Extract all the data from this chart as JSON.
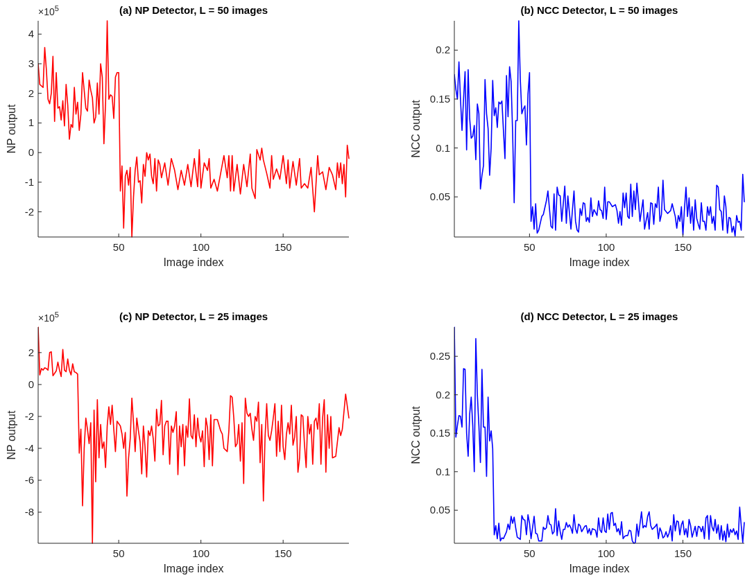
{
  "chart_data": [
    {
      "type": "line",
      "title": "(a) NP Detector, L = 50 images",
      "xlabel": "Image index",
      "ylabel": "NP output",
      "annotations": [
        "×10$^{5}$"
      ],
      "xlim": [
        1,
        190
      ],
      "xticks": [
        50,
        100,
        150
      ],
      "ylim": [
        -2.85,
        4.45
      ],
      "yticks": [
        -2,
        -1,
        0,
        1,
        2,
        3,
        4
      ],
      "x": [
        1,
        2,
        3,
        4,
        5,
        6,
        7,
        8,
        9,
        10,
        11,
        12,
        13,
        14,
        15,
        16,
        17,
        18,
        19,
        20,
        21,
        22,
        23,
        24,
        25,
        26,
        27,
        28,
        29,
        30,
        31,
        32,
        33,
        34,
        35,
        36,
        37,
        38,
        39,
        40,
        41,
        42,
        43,
        44,
        45,
        46,
        47,
        48,
        49,
        50,
        51,
        52,
        53,
        54,
        55,
        56,
        57,
        58,
        59,
        60,
        61,
        62,
        63,
        64,
        65,
        66,
        67,
        68,
        69,
        70,
        71,
        72,
        73,
        74,
        75,
        76,
        78,
        80,
        82,
        84,
        86,
        88,
        90,
        92,
        94,
        96,
        98,
        99,
        100,
        102,
        104,
        105,
        106,
        108,
        110,
        112,
        114,
        116,
        117,
        118,
        119,
        120,
        122,
        124,
        126,
        128,
        130,
        131,
        133,
        134,
        136,
        137,
        138,
        140,
        142,
        143,
        144,
        146,
        148,
        150,
        152,
        153,
        154,
        156,
        158,
        160,
        161,
        163,
        165,
        167,
        169,
        171,
        172,
        174,
        176,
        178,
        180,
        182,
        183,
        184,
        185,
        186,
        187,
        188,
        189,
        190
      ],
      "series": [
        {
          "color": "#ff0000",
          "values": [
            3.0,
            2.3,
            2.25,
            2.2,
            3.55,
            2.8,
            1.8,
            1.65,
            2.0,
            3.25,
            1.05,
            2.7,
            1.5,
            1.55,
            1.1,
            1.75,
            0.9,
            2.3,
            1.6,
            0.45,
            0.95,
            0.85,
            2.2,
            1.3,
            1.7,
            0.75,
            1.3,
            2.7,
            2.1,
            1.5,
            1.4,
            2.45,
            2.1,
            1.85,
            1.0,
            1.2,
            2.35,
            1.3,
            3.0,
            2.55,
            0.3,
            1.65,
            4.45,
            1.8,
            1.95,
            1.9,
            1.15,
            2.55,
            2.7,
            2.7,
            -1.3,
            -0.45,
            -2.55,
            -0.8,
            -0.6,
            -1.1,
            -0.5,
            -2.85,
            -1.5,
            -0.6,
            -0.15,
            -1.0,
            -0.95,
            -1.7,
            -0.4,
            -0.8,
            0,
            -0.25,
            -0.05,
            -0.8,
            -1.05,
            -0.2,
            -1.3,
            -0.25,
            -0.4,
            -0.85,
            -0.35,
            -1.1,
            -0.2,
            -0.6,
            -1.25,
            -0.6,
            -1.1,
            -0.4,
            -1.15,
            -0.2,
            -1.15,
            0.1,
            -1.2,
            -0.35,
            -0.6,
            -0.2,
            -1.2,
            -0.9,
            -1.3,
            -0.7,
            -0.1,
            -0.85,
            -0.1,
            -1.3,
            -0.1,
            -1.3,
            -0.4,
            -1.4,
            -0.4,
            -1.15,
            -0.05,
            -1.2,
            -1.55,
            0.1,
            -0.25,
            0.15,
            -0.25,
            -0.7,
            -1.2,
            -0.1,
            -0.9,
            -0.55,
            -0.9,
            -0.1,
            -1.05,
            -0.25,
            -1.2,
            -0.3,
            -1.1,
            -0.2,
            -1.2,
            -1.05,
            -1.2,
            -0.5,
            -2.0,
            -0.1,
            -0.75,
            -0.65,
            -1.25,
            -0.5,
            -0.75,
            -1.25,
            -0.35,
            -0.85,
            -0.35,
            -1.05,
            -0.4,
            -1.5,
            0.25,
            -0.2
          ]
        }
      ]
    },
    {
      "type": "line",
      "title": "(b) NCC Detector, L = 50 images",
      "xlabel": "Image index",
      "ylabel": "NCC output",
      "xlim": [
        1,
        190
      ],
      "xticks": [
        50,
        100,
        150
      ],
      "ylim": [
        0.009,
        0.23
      ],
      "yticks": [
        0.05,
        0.1,
        0.15,
        0.2
      ],
      "x": [
        1,
        2,
        3,
        4,
        5,
        6,
        7,
        8,
        9,
        10,
        11,
        12,
        13,
        14,
        15,
        16,
        17,
        18,
        19,
        20,
        21,
        22,
        23,
        24,
        25,
        26,
        27,
        28,
        29,
        30,
        31,
        32,
        33,
        34,
        35,
        36,
        37,
        38,
        39,
        40,
        41,
        42,
        43,
        44,
        45,
        46,
        47,
        48,
        49,
        50,
        51,
        52,
        53,
        54,
        55,
        56,
        58,
        59,
        61,
        62,
        63,
        64,
        65,
        66,
        67,
        68,
        69,
        70,
        71,
        73,
        74,
        75,
        77,
        78,
        79,
        80,
        81,
        82,
        83,
        84,
        85,
        86,
        87,
        88,
        89,
        90,
        91,
        92,
        94,
        95,
        96,
        97,
        98,
        99,
        100,
        101,
        102,
        104,
        106,
        107,
        108,
        109,
        110,
        111,
        112,
        113,
        114,
        115,
        116,
        117,
        118,
        119,
        120,
        121,
        122,
        124,
        125,
        127,
        128,
        129,
        130,
        131,
        132,
        133,
        134,
        135,
        136,
        137,
        138,
        140,
        142,
        143,
        145,
        146,
        147,
        148,
        149,
        150,
        151,
        152,
        153,
        154,
        155,
        156,
        157,
        158,
        159,
        160,
        161,
        162,
        163,
        164,
        165,
        166,
        167,
        168,
        169,
        170,
        171,
        172,
        173,
        174,
        175,
        176,
        177,
        178,
        179,
        180,
        181,
        182,
        183,
        184,
        185,
        186,
        187,
        188,
        189,
        190
      ],
      "series": [
        {
          "color": "#0000ff",
          "values": [
            0.175,
            0.16,
            0.15,
            0.188,
            0.15,
            0.118,
            0.15,
            0.178,
            0.098,
            0.18,
            0.13,
            0.11,
            0.112,
            0.123,
            0.088,
            0.145,
            0.135,
            0.058,
            0.072,
            0.082,
            0.17,
            0.135,
            0.12,
            0.072,
            0.1,
            0.169,
            0.133,
            0.141,
            0.121,
            0.147,
            0.145,
            0.148,
            0.118,
            0.089,
            0.174,
            0.132,
            0.183,
            0.168,
            0.115,
            0.044,
            0.128,
            0.128,
            0.23,
            0.17,
            0.135,
            0.14,
            0.143,
            0.103,
            0.155,
            0.177,
            0.025,
            0.04,
            0.017,
            0.043,
            0.013,
            0.016,
            0.03,
            0.032,
            0.046,
            0.056,
            0.038,
            0.02,
            0.018,
            0.053,
            0.016,
            0.06,
            0.052,
            0.051,
            0.025,
            0.061,
            0.023,
            0.051,
            0.017,
            0.037,
            0.056,
            0.025,
            0.016,
            0.014,
            0.038,
            0.031,
            0.044,
            0.043,
            0.025,
            0.029,
            0.024,
            0.049,
            0.03,
            0.037,
            0.031,
            0.046,
            0.037,
            0.036,
            0.028,
            0.06,
            0.027,
            0.045,
            0.045,
            0.04,
            0.042,
            0.036,
            0.023,
            0.035,
            0.021,
            0.054,
            0.039,
            0.054,
            0.03,
            0.028,
            0.063,
            0.03,
            0.056,
            0.037,
            0.064,
            0.045,
            0.025,
            0.047,
            0.017,
            0.034,
            0.017,
            0.044,
            0.043,
            0.022,
            0.043,
            0.039,
            0.06,
            0.025,
            0.032,
            0.067,
            0.037,
            0.033,
            0.036,
            0.043,
            0.03,
            0.018,
            0.031,
            0.025,
            0.04,
            0.011,
            0.038,
            0.06,
            0.03,
            0.049,
            0.023,
            0.04,
            0.016,
            0.047,
            0.028,
            0.022,
            0.017,
            0.044,
            0.025,
            0.025,
            0.016,
            0.04,
            0.031,
            0.04,
            0.023,
            0.03,
            0.016,
            0.062,
            0.06,
            0.037,
            0.035,
            0.016,
            0.051,
            0.04,
            0.013,
            0.029,
            0.028,
            0.014,
            0.02,
            0.01,
            0.031,
            0.024,
            0.025,
            0.016,
            0.073,
            0.045
          ]
        }
      ]
    },
    {
      "type": "line",
      "title": "(c) NP Detector, L = 25 images",
      "xlabel": "Image index",
      "ylabel": "NP output",
      "annotations": [
        "×10$^{5}$"
      ],
      "xlim": [
        1,
        190
      ],
      "xticks": [
        50,
        100,
        150
      ],
      "ylim": [
        -9.95,
        3.6
      ],
      "yticks": [
        -8,
        -6,
        -4,
        -2,
        0,
        2
      ],
      "x": [
        1,
        2,
        3,
        4,
        5,
        6,
        7,
        8,
        9,
        10,
        11,
        12,
        13,
        14,
        15,
        16,
        17,
        18,
        19,
        20,
        21,
        22,
        23,
        24,
        25,
        26,
        27,
        28,
        29,
        30,
        31,
        32,
        33,
        34,
        35,
        36,
        37,
        38,
        39,
        40,
        41,
        42,
        43,
        44,
        45,
        46,
        47,
        48,
        49,
        51,
        52,
        53,
        54,
        55,
        56,
        57,
        58,
        59,
        60,
        61,
        62,
        63,
        64,
        65,
        66,
        67,
        68,
        69,
        70,
        71,
        72,
        73,
        74,
        75,
        76,
        77,
        78,
        79,
        80,
        81,
        82,
        83,
        84,
        85,
        86,
        87,
        88,
        89,
        90,
        91,
        92,
        93,
        94,
        95,
        96,
        97,
        98,
        99,
        100,
        101,
        102,
        103,
        104,
        105,
        106,
        107,
        108,
        110,
        112,
        113,
        114,
        116,
        117,
        118,
        119,
        120,
        121,
        122,
        123,
        124,
        125,
        126,
        127,
        128,
        129,
        130,
        131,
        132,
        133,
        134,
        135,
        136,
        137,
        138,
        139,
        140,
        141,
        142,
        143,
        144,
        145,
        146,
        147,
        148,
        149,
        150,
        151,
        152,
        153,
        154,
        155,
        156,
        157,
        158,
        159,
        160,
        161,
        162,
        163,
        164,
        165,
        166,
        167,
        168,
        169,
        170,
        171,
        172,
        173,
        174,
        175,
        176,
        177,
        178,
        179,
        180,
        182,
        184,
        185,
        186,
        188,
        190
      ],
      "series": [
        {
          "color": "#ff0000",
          "values": [
            3.6,
            0.6,
            1.0,
            0.9,
            1.05,
            1.0,
            0.9,
            2.0,
            2.05,
            0.55,
            0.7,
            0.85,
            1.4,
            0.9,
            0.5,
            2.2,
            0.9,
            0.8,
            1.6,
            0.9,
            0.6,
            1.3,
            0.8,
            0.75,
            0.65,
            -4.3,
            -2.8,
            -7.6,
            -4.0,
            -2.1,
            -2.8,
            -3.7,
            -2.4,
            -9.95,
            -1.6,
            -6.1,
            -0.95,
            -4.6,
            -2.5,
            -4.0,
            -3.6,
            -5.2,
            -2.6,
            -1.4,
            -2.5,
            -1.3,
            -2.8,
            -4.2,
            -2.3,
            -2.6,
            -3.1,
            -4.0,
            -3.0,
            -7.0,
            -4.6,
            -3.4,
            -0.85,
            -2.4,
            -4.2,
            -2.1,
            -2.9,
            -3.6,
            -5.6,
            -2.6,
            -3.9,
            -5.8,
            -2.9,
            -3.2,
            -2.6,
            -3.4,
            -4.8,
            -1.55,
            -2.6,
            -2.5,
            -1.0,
            -4.4,
            -2.6,
            -2.3,
            -2.3,
            -5.0,
            -2.6,
            -3.0,
            -2.6,
            -1.7,
            -5.65,
            -2.6,
            -3.9,
            -2.5,
            -5.1,
            -2.6,
            -3.3,
            -0.9,
            -3.2,
            -3.4,
            -1.9,
            -3.9,
            -2.1,
            -3.2,
            -3.6,
            -2.9,
            -5.15,
            -2.1,
            -2.7,
            -4.7,
            -1.9,
            -5.1,
            -2.2,
            -2.2,
            -2.9,
            -3.1,
            -4.0,
            -4.2,
            -2.9,
            -0.7,
            -0.8,
            -2.1,
            -3.9,
            -3.7,
            -2.5,
            -4.8,
            -2.4,
            -6.2,
            -0.85,
            -1.8,
            -2.0,
            -1.8,
            -2.8,
            -3.5,
            -2.0,
            -2.3,
            -1.1,
            -4.9,
            -2.5,
            -7.3,
            -3.3,
            -1.2,
            -3.2,
            -3.5,
            -2.9,
            -2.1,
            -1.2,
            -4.5,
            -2.3,
            -4.2,
            -1.3,
            -3.9,
            -4.7,
            -3.1,
            -2.4,
            -3.1,
            -1.3,
            -3.8,
            -3.3,
            -2.0,
            -5.5,
            -4.6,
            -1.9,
            -2.0,
            -3.8,
            -5.2,
            -2.0,
            -3.1,
            -2.5,
            -5.0,
            -2.3,
            -2.1,
            -2.8,
            -1.2,
            -5.0,
            -2.1,
            -0.95,
            -5.5,
            -1.9,
            -4.0,
            -2.0,
            -4.6,
            -4.5,
            -2.7,
            -3.2,
            -2.8,
            -0.6,
            -2.1
          ]
        }
      ]
    },
    {
      "type": "line",
      "title": "(d) NCC Detector, L = 25 images",
      "xlabel": "Image index",
      "ylabel": "NCC output",
      "xlim": [
        1,
        190
      ],
      "xticks": [
        50,
        100,
        150
      ],
      "ylim": [
        0.007,
        0.288
      ],
      "yticks": [
        0.05,
        0.1,
        0.15,
        0.2,
        0.25
      ],
      "x": [
        1,
        2,
        3,
        4,
        5,
        6,
        7,
        8,
        9,
        10,
        11,
        12,
        13,
        14,
        15,
        16,
        17,
        18,
        19,
        20,
        21,
        22,
        23,
        24,
        25,
        26,
        27,
        28,
        29,
        30,
        31,
        32,
        33,
        35,
        36,
        37,
        38,
        39,
        40,
        41,
        42,
        44,
        45,
        46,
        47,
        48,
        49,
        50,
        51,
        53,
        54,
        55,
        56,
        58,
        59,
        60,
        61,
        62,
        63,
        64,
        65,
        66,
        67,
        68,
        69,
        70,
        71,
        72,
        73,
        74,
        75,
        76,
        77,
        78,
        79,
        80,
        81,
        82,
        83,
        84,
        86,
        87,
        88,
        89,
        90,
        91,
        92,
        93,
        94,
        95,
        96,
        97,
        98,
        99,
        100,
        101,
        102,
        103,
        104,
        105,
        106,
        107,
        108,
        109,
        110,
        111,
        112,
        113,
        114,
        115,
        116,
        117,
        118,
        119,
        120,
        121,
        122,
        123,
        124,
        125,
        126,
        127,
        128,
        129,
        130,
        132,
        133,
        134,
        135,
        136,
        137,
        138,
        139,
        140,
        141,
        142,
        143,
        144,
        145,
        146,
        147,
        148,
        149,
        150,
        151,
        152,
        153,
        154,
        155,
        156,
        157,
        158,
        159,
        160,
        161,
        162,
        163,
        164,
        165,
        166,
        167,
        168,
        169,
        170,
        171,
        172,
        173,
        174,
        175,
        176,
        177,
        178,
        179,
        180,
        181,
        182,
        183,
        184,
        185,
        186,
        187,
        188,
        189,
        190
      ],
      "series": [
        {
          "color": "#0000ff",
          "values": [
            0.288,
            0.145,
            0.16,
            0.173,
            0.172,
            0.158,
            0.234,
            0.233,
            0.15,
            0.12,
            0.175,
            0.197,
            0.16,
            0.1,
            0.273,
            0.2,
            0.16,
            0.112,
            0.233,
            0.158,
            0.158,
            0.094,
            0.197,
            0.14,
            0.153,
            0.13,
            0.018,
            0.03,
            0.013,
            0.033,
            0.01,
            0.014,
            0.013,
            0.022,
            0.032,
            0.025,
            0.042,
            0.033,
            0.041,
            0.027,
            0.015,
            0.012,
            0.043,
            0.038,
            0.037,
            0.018,
            0.044,
            0.033,
            0.013,
            0.042,
            0.02,
            0.019,
            0.01,
            0.01,
            0.028,
            0.025,
            0.027,
            0.043,
            0.032,
            0.031,
            0.019,
            0.022,
            0.052,
            0.017,
            0.036,
            0.022,
            0.012,
            0.025,
            0.025,
            0.034,
            0.028,
            0.031,
            0.027,
            0.02,
            0.044,
            0.026,
            0.02,
            0.032,
            0.03,
            0.022,
            0.029,
            0.03,
            0.02,
            0.026,
            0.018,
            0.026,
            0.025,
            0.024,
            0.015,
            0.04,
            0.024,
            0.021,
            0.04,
            0.023,
            0.021,
            0.045,
            0.025,
            0.046,
            0.047,
            0.03,
            0.033,
            0.022,
            0.026,
            0.018,
            0.035,
            0.013,
            0.016,
            0.017,
            0.017,
            0.024,
            0.023,
            0.01,
            0.007,
            0.008,
            0.032,
            0.016,
            0.032,
            0.048,
            0.027,
            0.03,
            0.028,
            0.042,
            0.048,
            0.03,
            0.025,
            0.029,
            0.032,
            0.013,
            0.027,
            0.022,
            0.014,
            0.016,
            0.022,
            0.015,
            0.02,
            0.03,
            0.01,
            0.044,
            0.023,
            0.036,
            0.035,
            0.018,
            0.031,
            0.036,
            0.018,
            0.026,
            0.015,
            0.038,
            0.03,
            0.015,
            0.022,
            0.029,
            0.016,
            0.029,
            0.028,
            0.022,
            0.029,
            0.013,
            0.04,
            0.043,
            0.012,
            0.043,
            0.028,
            0.023,
            0.038,
            0.02,
            0.031,
            0.012,
            0.03,
            0.011,
            0.023,
            0.009,
            0.032,
            0.015,
            0.025,
            0.021,
            0.026,
            0.018,
            0.023,
            0.012,
            0.054,
            0.03,
            0.008,
            0.034
          ]
        }
      ]
    }
  ]
}
